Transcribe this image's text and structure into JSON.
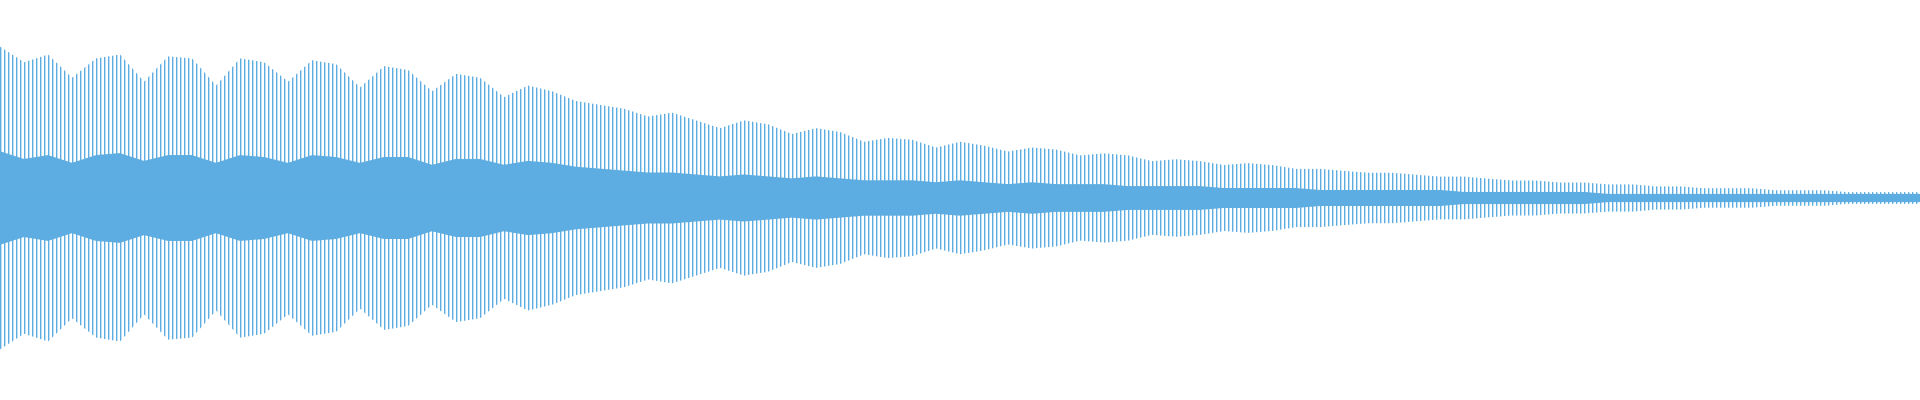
{
  "chart_data": {
    "type": "waveform",
    "color": "#5dade2",
    "ylim": [
      -1,
      1
    ],
    "series": [
      {
        "values": [
          0.78,
          0.7,
          0.74,
          0.62,
          0.72,
          0.74,
          0.6,
          0.73,
          0.72,
          0.58,
          0.72,
          0.7,
          0.6,
          0.71,
          0.69,
          0.57,
          0.68,
          0.66,
          0.55,
          0.64,
          0.62,
          0.52,
          0.58,
          0.55,
          0.5,
          0.48,
          0.46,
          0.42,
          0.44,
          0.4,
          0.36,
          0.4,
          0.38,
          0.33,
          0.36,
          0.34,
          0.29,
          0.31,
          0.3,
          0.26,
          0.29,
          0.27,
          0.24,
          0.26,
          0.25,
          0.22,
          0.23,
          0.22,
          0.19,
          0.2,
          0.19,
          0.17,
          0.18,
          0.17,
          0.15,
          0.15,
          0.14,
          0.13,
          0.13,
          0.12,
          0.11,
          0.11,
          0.1,
          0.09,
          0.09,
          0.08,
          0.08,
          0.07,
          0.07,
          0.06,
          0.06,
          0.05,
          0.05,
          0.05,
          0.04,
          0.04,
          0.04,
          0.03,
          0.03,
          0.03,
          0.03
        ]
      },
      {
        "values": [
          0.24,
          0.2,
          0.22,
          0.18,
          0.22,
          0.23,
          0.19,
          0.22,
          0.22,
          0.18,
          0.22,
          0.21,
          0.18,
          0.22,
          0.21,
          0.18,
          0.21,
          0.21,
          0.17,
          0.2,
          0.2,
          0.17,
          0.19,
          0.18,
          0.16,
          0.15,
          0.14,
          0.13,
          0.13,
          0.12,
          0.11,
          0.12,
          0.11,
          0.1,
          0.11,
          0.1,
          0.09,
          0.09,
          0.09,
          0.08,
          0.09,
          0.08,
          0.07,
          0.08,
          0.07,
          0.07,
          0.07,
          0.06,
          0.06,
          0.06,
          0.06,
          0.05,
          0.05,
          0.05,
          0.05,
          0.04,
          0.04,
          0.04,
          0.04,
          0.04,
          0.04,
          0.03,
          0.03,
          0.03,
          0.03,
          0.03,
          0.03,
          0.02,
          0.02,
          0.02,
          0.02,
          0.02,
          0.02,
          0.02,
          0.02,
          0.02,
          0.02,
          0.02,
          0.02,
          0.02,
          0.02
        ]
      }
    ]
  }
}
